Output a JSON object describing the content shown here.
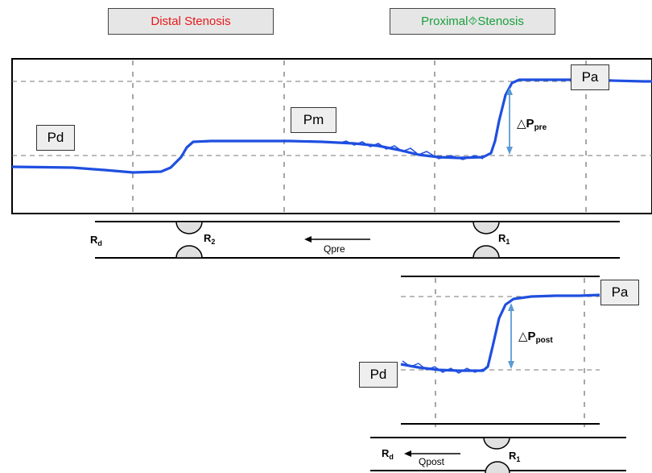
{
  "headers": {
    "distal": {
      "label": "Distal Stenosis",
      "color": "#e8181a"
    },
    "proximal": {
      "label": "Proximal⯑Stenosis",
      "color": "#19a03c"
    }
  },
  "pre_panel": {
    "labels": {
      "pd": "Pd",
      "pm": "Pm",
      "pa": "Pa"
    },
    "delta": {
      "symbol": "△",
      "p": "P",
      "sub": "pre"
    },
    "trace_color": "#1f4fe0",
    "arrow_color": "#5b9bd5"
  },
  "pre_vessel": {
    "rd": {
      "main": "R",
      "sub": "d"
    },
    "r2": {
      "main": "R",
      "sub": "2"
    },
    "r1": {
      "main": "R",
      "sub": "1"
    },
    "flow_label": "Qpre"
  },
  "post_panel": {
    "labels": {
      "pd": "Pd",
      "pa": "Pa"
    },
    "delta": {
      "symbol": "△",
      "p": "P",
      "sub": "post"
    }
  },
  "post_vessel": {
    "rd": {
      "main": "R",
      "sub": "d"
    },
    "r1": {
      "main": "R",
      "sub": "1"
    },
    "flow_label": "Qpost"
  }
}
